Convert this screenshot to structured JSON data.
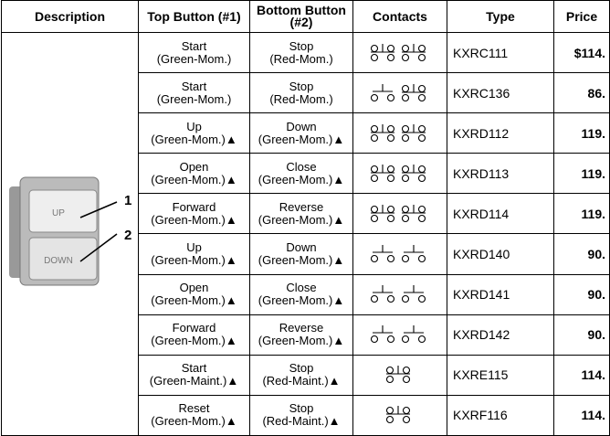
{
  "table": {
    "header": [
      "Description",
      "Top Button (#1)",
      "Bottom Button\n(#2)",
      "Contacts",
      "Type",
      "Price"
    ],
    "rows": [
      {
        "top": "Start\n(Green-Mom.)",
        "bottom": "Stop\n(Red-Mom.)",
        "type": "KXRC111",
        "price": "$114."
      },
      {
        "top": "Start\n(Green-Mom.)",
        "bottom": "Stop\n(Red-Mom.)",
        "type": "KXRC136",
        "price": "86."
      },
      {
        "top": "Up\n(Green-Mom.)▲",
        "bottom": "Down\n(Green-Mom.)▲",
        "type": "KXRD112",
        "price": "119."
      },
      {
        "top": "Open\n(Green-Mom.)▲",
        "bottom": "Close\n(Green-Mom.)▲",
        "type": "KXRD113",
        "price": "119."
      },
      {
        "top": "Forward\n(Green-Mom.)▲",
        "bottom": "Reverse\n(Green-Mom.)▲",
        "type": "KXRD114",
        "price": "119."
      },
      {
        "top": "Up\n(Green-Mom.)▲",
        "bottom": "Down\n(Green-Mom.)▲",
        "type": "KXRD140",
        "price": "90."
      },
      {
        "top": "Open\n(Green-Mom.)▲",
        "bottom": "Close\n(Green-Mom.)▲",
        "type": "KXRD141",
        "price": "90."
      },
      {
        "top": "Forward\n(Green-Mom.)▲",
        "bottom": "Reverse\n(Green-Mom.)▲",
        "type": "KXRD142",
        "price": "90."
      },
      {
        "top": "Start\n(Green-Maint.)▲",
        "bottom": "Stop\n(Red-Maint.)▲",
        "type": "KXRE115",
        "price": "114."
      },
      {
        "top": "Reset\n(Green-Mom.)▲",
        "bottom": "Stop\n(Red-Maint.)▲",
        "type": "KXRF116",
        "price": "114."
      }
    ]
  },
  "image": {
    "button_labels": [
      "UP",
      "DOWN"
    ],
    "callouts": [
      "1",
      "2"
    ]
  }
}
